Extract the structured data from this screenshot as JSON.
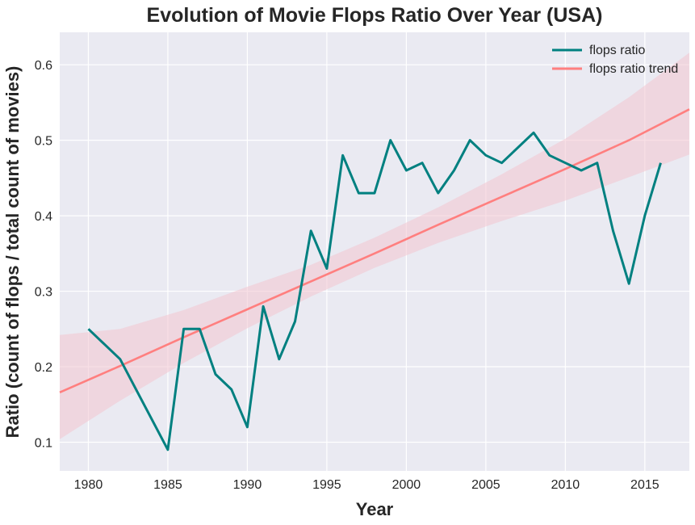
{
  "chart_data": {
    "type": "line",
    "title": "Evolution of Movie Flops Ratio Over Year (USA)",
    "xlabel": "Year",
    "ylabel": "Ratio  (count of flops / total count of movies)",
    "xlim": [
      1978.2,
      2017.8
    ],
    "ylim": [
      0.062,
      0.643
    ],
    "xticks": [
      1980,
      1985,
      1990,
      1995,
      2000,
      2005,
      2010,
      2015
    ],
    "yticks": [
      0.1,
      0.2,
      0.3,
      0.4,
      0.5,
      0.6
    ],
    "ytick_labels": [
      "0.1",
      "0.2",
      "0.3",
      "0.4",
      "0.5",
      "0.6"
    ],
    "grid": true,
    "legend_position": "top-right",
    "series": [
      {
        "name": "flops ratio",
        "color": "#008080",
        "x": [
          1980,
          1982,
          1985,
          1986,
          1987,
          1988,
          1989,
          1990,
          1991,
          1992,
          1993,
          1994,
          1995,
          1996,
          1997,
          1998,
          1999,
          2000,
          2001,
          2002,
          2003,
          2004,
          2005,
          2006,
          2007,
          2008,
          2009,
          2010,
          2011,
          2012,
          2013,
          2014,
          2015,
          2016
        ],
        "y": [
          0.25,
          0.21,
          0.09,
          0.25,
          0.25,
          0.19,
          0.17,
          0.12,
          0.28,
          0.21,
          0.26,
          0.38,
          0.33,
          0.48,
          0.43,
          0.43,
          0.5,
          0.46,
          0.47,
          0.43,
          0.46,
          0.5,
          0.48,
          0.47,
          0.49,
          0.51,
          0.48,
          0.47,
          0.46,
          0.47,
          0.38,
          0.31,
          0.4,
          0.47
        ]
      }
    ],
    "trend": {
      "name": "flops ratio trend",
      "color": "#FF7F7F",
      "band_color": "#F2C5CF",
      "x": [
        1978.2,
        1982,
        1986,
        1990,
        1994,
        1998,
        2002,
        2006,
        2010,
        2014,
        2017.8
      ],
      "y": [
        0.166,
        0.201,
        0.239,
        0.276,
        0.313,
        0.35,
        0.388,
        0.425,
        0.462,
        0.5,
        0.541
      ],
      "lower": [
        0.104,
        0.155,
        0.205,
        0.251,
        0.293,
        0.331,
        0.364,
        0.393,
        0.42,
        0.451,
        0.481
      ],
      "upper": [
        0.242,
        0.25,
        0.275,
        0.306,
        0.335,
        0.371,
        0.411,
        0.455,
        0.502,
        0.557,
        0.616
      ]
    }
  }
}
